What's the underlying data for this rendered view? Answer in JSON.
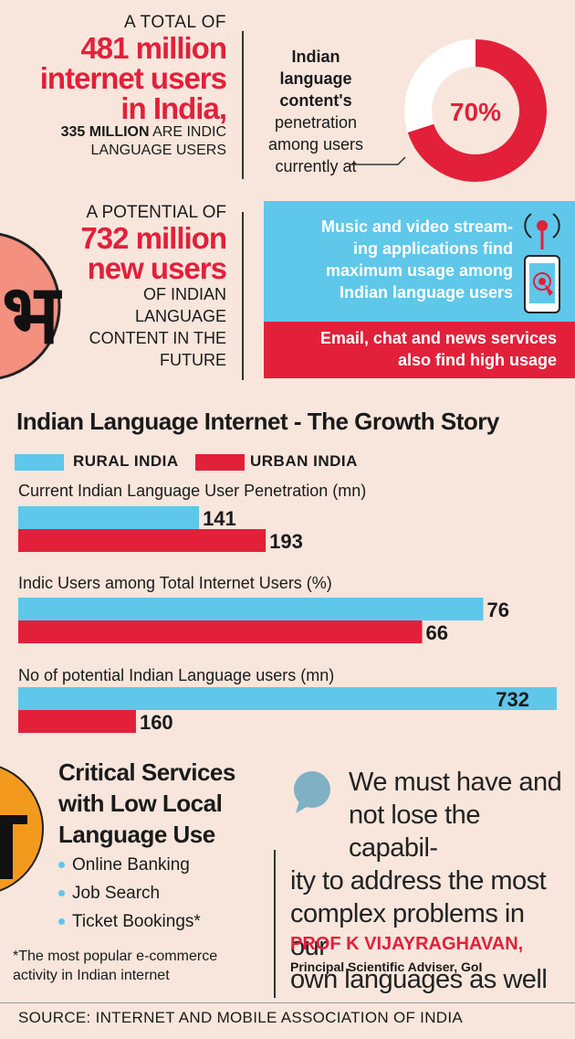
{
  "stats": {
    "total_kicker": "A TOTAL OF",
    "total_big": [
      "481 million",
      "internet users",
      "in India,"
    ],
    "total_small_bold": "335 MILLION",
    "total_small_rest": " ARE INDIC",
    "total_small_line2": "LANGUAGE USERS",
    "penetration_lines_bold": [
      "Indian",
      "language",
      "content's"
    ],
    "penetration_lines": [
      "penetration",
      "among users",
      "currently at"
    ],
    "penetration_value": "70%",
    "penetration_fraction": 0.7,
    "potential_kicker": "A POTENTIAL OF",
    "potential_big": [
      "732 million",
      "new users"
    ],
    "potential_small": [
      "OF INDIAN",
      "LANGUAGE",
      "CONTENT IN THE",
      "FUTURE"
    ]
  },
  "callouts": {
    "blue_lines": [
      "Music and video stream-",
      "ing applications find",
      "maximum usage among",
      "Indian language users"
    ],
    "red_lines": [
      "Email, chat and news services",
      "also find high usage"
    ]
  },
  "colors": {
    "rural": "#5ec7ea",
    "urban": "#e2203a",
    "background": "#f8e6dc",
    "accent_orange": "#f39a1e",
    "pink_circle": "#f3907f"
  },
  "icons": [
    "devanagari-letter-icon",
    "broadcast-tower-icon",
    "smartphone-touch-icon",
    "speech-bubble-icon"
  ],
  "chart_data": {
    "type": "bar",
    "orientation": "horizontal",
    "title": "Indian Language Internet - The Growth Story",
    "groups": [
      "Current Indian Language User Penetration (mn)",
      "Indic Users among Total Internet Users (%)",
      "No of potential Indian Language users (mn)"
    ],
    "series": [
      {
        "name": "RURAL INDIA",
        "values": [
          141,
          76,
          732
        ]
      },
      {
        "name": "URBAN INDIA",
        "values": [
          193,
          66,
          160
        ]
      }
    ],
    "value_labels": {
      "rural": [
        "141",
        "76",
        "732"
      ],
      "urban": [
        "193",
        "66",
        "160"
      ]
    }
  },
  "services": {
    "title_lines": [
      "Critical Services",
      "with Low Local",
      "Language Use"
    ],
    "items": [
      "Online Banking",
      "Job Search",
      "Ticket Bookings*"
    ],
    "footnote_lines": [
      "*The most popular e-commerce",
      "activity in Indian internet"
    ]
  },
  "quote": {
    "lines": [
      "We must have  and",
      "not lose the capabil-",
      "ity to address the most",
      "complex problems in our",
      "own languages as well"
    ],
    "author": "PROF K VIJAYRAGHAVAN,",
    "role": "Principal Scientific Adviser, GoI"
  },
  "source": "SOURCE: INTERNET AND MOBILE ASSOCIATION OF INDIA"
}
